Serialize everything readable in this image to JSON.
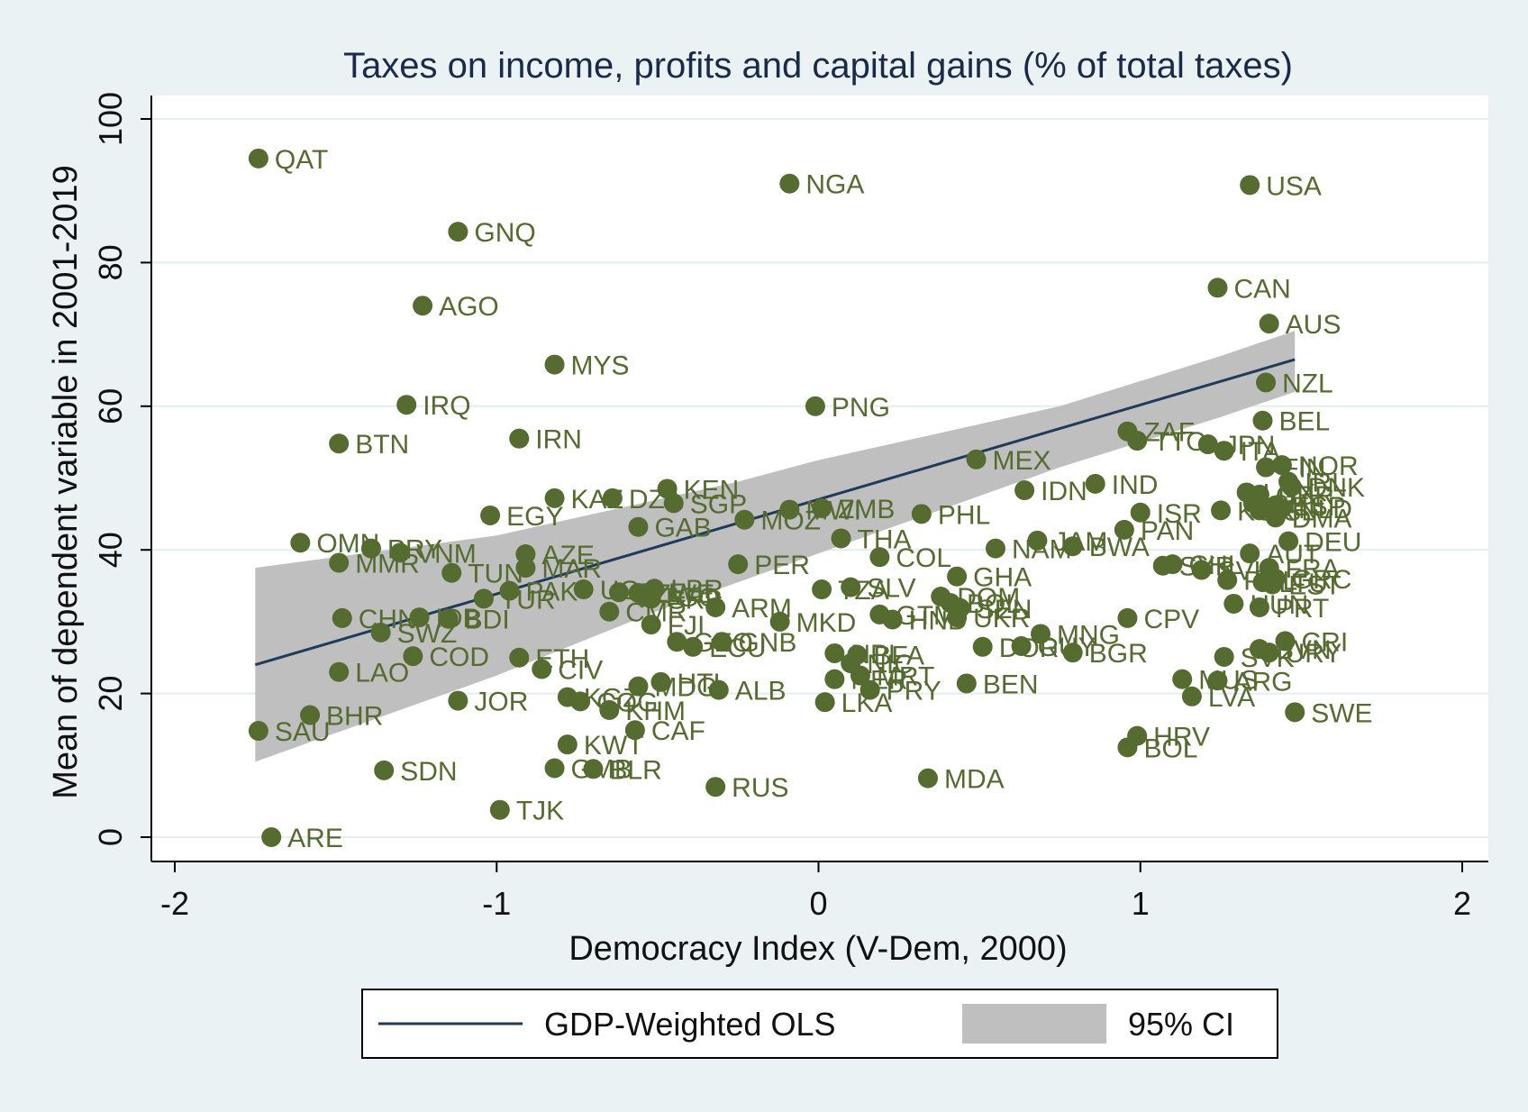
{
  "chart_data": {
    "type": "scatter",
    "title": "Taxes on income, profits and capital gains (% of total taxes)",
    "xlabel": "Democracy Index (V-Dem, 2000)",
    "ylabel": "Mean of dependent variable in 2001-2019",
    "xlim": [
      -2,
      2
    ],
    "ylim": [
      0,
      100
    ],
    "xticks": [
      "-2",
      "-1",
      "0",
      "1",
      "2"
    ],
    "yticks": [
      "0",
      "20",
      "40",
      "60",
      "80",
      "100"
    ],
    "grid": "horizontal",
    "legend_placement": "bottom",
    "legend": {
      "line_label": "GDP-Weighted OLS",
      "band_label": "95% CI"
    },
    "colors": {
      "point": "#556b2f",
      "line": "#1f3b5c",
      "band": "#bfbfbf",
      "plot_bg": "#ffffff",
      "outer_bg": "#eaf2f3",
      "grid": "#e4eef0"
    },
    "fit_line": {
      "x": [
        -1.75,
        1.48
      ],
      "y": [
        24.0,
        66.5
      ]
    },
    "ci_band": {
      "x": [
        -1.75,
        -1.5,
        -1.25,
        -1.0,
        -0.75,
        -0.5,
        -0.25,
        0.0,
        0.25,
        0.5,
        0.75,
        1.0,
        1.25,
        1.48
      ],
      "lower": [
        10.5,
        14.5,
        18.5,
        22.5,
        27.0,
        31.5,
        35.5,
        39.5,
        43.5,
        47.5,
        51.5,
        55.0,
        58.5,
        62.0
      ],
      "upper": [
        37.5,
        39.0,
        40.5,
        42.0,
        44.5,
        47.0,
        49.5,
        52.5,
        55.0,
        57.5,
        60.0,
        63.5,
        67.0,
        70.5
      ]
    },
    "points": [
      {
        "label": "QAT",
        "x": -1.74,
        "y": 94.5
      },
      {
        "label": "NGA",
        "x": -0.09,
        "y": 91.0
      },
      {
        "label": "USA",
        "x": 1.34,
        "y": 90.8
      },
      {
        "label": "GNQ",
        "x": -1.12,
        "y": 84.3
      },
      {
        "label": "CAN",
        "x": 1.24,
        "y": 76.5
      },
      {
        "label": "AGO",
        "x": -1.23,
        "y": 74.0
      },
      {
        "label": "AUS",
        "x": 1.4,
        "y": 71.5
      },
      {
        "label": "MYS",
        "x": -0.82,
        "y": 65.8
      },
      {
        "label": "NZL",
        "x": 1.39,
        "y": 63.3
      },
      {
        "label": "IRQ",
        "x": -1.28,
        "y": 60.2
      },
      {
        "label": "PNG",
        "x": -0.01,
        "y": 60.0
      },
      {
        "label": "BEL",
        "x": 1.38,
        "y": 58.0
      },
      {
        "label": "IRN",
        "x": -0.93,
        "y": 55.5
      },
      {
        "label": "BTN",
        "x": -1.49,
        "y": 54.8
      },
      {
        "label": "ZAF",
        "x": 0.96,
        "y": 56.5
      },
      {
        "label": "TTO",
        "x": 0.99,
        "y": 55.2
      },
      {
        "label": "JPN",
        "x": 1.21,
        "y": 54.7
      },
      {
        "label": "ITA",
        "x": 1.26,
        "y": 53.8
      },
      {
        "label": "MEX",
        "x": 0.49,
        "y": 52.6
      },
      {
        "label": "NOR",
        "x": 1.44,
        "y": 51.8
      },
      {
        "label": "FIN",
        "x": 1.39,
        "y": 51.5
      },
      {
        "label": "IRL",
        "x": 1.46,
        "y": 49.5
      },
      {
        "label": "IND",
        "x": 0.86,
        "y": 49.2
      },
      {
        "label": "DNK",
        "x": 1.47,
        "y": 48.8
      },
      {
        "label": "KEN",
        "x": -0.47,
        "y": 48.5
      },
      {
        "label": "IDN",
        "x": 0.64,
        "y": 48.3
      },
      {
        "label": "LUX",
        "x": 1.33,
        "y": 48.0
      },
      {
        "label": "GBR",
        "x": 1.37,
        "y": 47.7
      },
      {
        "label": "KAZ",
        "x": -0.82,
        "y": 47.2
      },
      {
        "label": "DZA",
        "x": -0.64,
        "y": 47.2
      },
      {
        "label": "CHE",
        "x": 1.35,
        "y": 46.5
      },
      {
        "label": "ESP",
        "x": 1.42,
        "y": 46.2
      },
      {
        "label": "SGP",
        "x": -0.45,
        "y": 46.5
      },
      {
        "label": "NLD",
        "x": 1.44,
        "y": 45.8
      },
      {
        "label": "ISL",
        "x": 1.37,
        "y": 45.5
      },
      {
        "label": "MOZ",
        "x": -0.23,
        "y": 44.2
      },
      {
        "label": "MWI",
        "x": -0.09,
        "y": 45.6
      },
      {
        "label": "ZMB",
        "x": 0.01,
        "y": 45.8
      },
      {
        "label": "ISR",
        "x": 1.0,
        "y": 45.2
      },
      {
        "label": "KOR",
        "x": 1.25,
        "y": 45.5
      },
      {
        "label": "DMA",
        "x": 1.42,
        "y": 44.5
      },
      {
        "label": "EGY",
        "x": -1.02,
        "y": 44.8
      },
      {
        "label": "PHL",
        "x": 0.32,
        "y": 45.0
      },
      {
        "label": "GAB",
        "x": -0.56,
        "y": 43.2
      },
      {
        "label": "PAN",
        "x": 0.95,
        "y": 42.8
      },
      {
        "label": "THA",
        "x": 0.07,
        "y": 41.6
      },
      {
        "label": "DEU",
        "x": 1.46,
        "y": 41.2
      },
      {
        "label": "OMN",
        "x": -1.61,
        "y": 41.0
      },
      {
        "label": "JAM",
        "x": 0.68,
        "y": 41.3
      },
      {
        "label": "BWA",
        "x": 0.79,
        "y": 40.5
      },
      {
        "label": "PRY",
        "x": -1.39,
        "y": 40.2
      },
      {
        "label": "NAM",
        "x": 0.55,
        "y": 40.2
      },
      {
        "label": "VNM",
        "x": -1.3,
        "y": 39.6
      },
      {
        "label": "AZE",
        "x": -0.91,
        "y": 39.4
      },
      {
        "label": "AUT",
        "x": 1.34,
        "y": 39.5
      },
      {
        "label": "COL",
        "x": 0.19,
        "y": 39.0
      },
      {
        "label": "MMR",
        "x": -1.49,
        "y": 38.2
      },
      {
        "label": "PER",
        "x": -0.25,
        "y": 38.0
      },
      {
        "label": "SYR",
        "x": 1.07,
        "y": 37.8
      },
      {
        "label": "CHL",
        "x": 1.1,
        "y": 38.0
      },
      {
        "label": "FRA",
        "x": 1.4,
        "y": 37.5
      },
      {
        "label": "MAR",
        "x": -0.91,
        "y": 37.5
      },
      {
        "label": "SVK",
        "x": 1.19,
        "y": 37.2
      },
      {
        "label": "TUN",
        "x": -1.14,
        "y": 36.8
      },
      {
        "label": "GHA",
        "x": 0.43,
        "y": 36.3
      },
      {
        "label": "GRC",
        "x": 1.42,
        "y": 36.0
      },
      {
        "label": "POL",
        "x": 1.27,
        "y": 35.8
      },
      {
        "label": "LTU",
        "x": 1.38,
        "y": 35.5
      },
      {
        "label": "EST",
        "x": 1.41,
        "y": 35.2
      },
      {
        "label": "SLV",
        "x": 0.1,
        "y": 34.8
      },
      {
        "label": "TZA",
        "x": 0.01,
        "y": 34.5
      },
      {
        "label": "UGA",
        "x": -0.73,
        "y": 34.5
      },
      {
        "label": "LBR",
        "x": -0.51,
        "y": 34.6
      },
      {
        "label": "PAK",
        "x": -0.96,
        "y": 34.3
      },
      {
        "label": "SLE",
        "x": -0.62,
        "y": 34.1
      },
      {
        "label": "ZWE",
        "x": -0.56,
        "y": 34.0
      },
      {
        "label": "TGO",
        "x": -0.54,
        "y": 33.5
      },
      {
        "label": "SRB",
        "x": -0.52,
        "y": 33.2
      },
      {
        "label": "DOM",
        "x": 0.38,
        "y": 33.5
      },
      {
        "label": "BOL",
        "x": 0.41,
        "y": 32.6
      },
      {
        "label": "SEN",
        "x": 0.44,
        "y": 31.9
      },
      {
        "label": "HUN",
        "x": 1.29,
        "y": 32.5
      },
      {
        "label": "PRT",
        "x": 1.37,
        "y": 32.0
      },
      {
        "label": "TUR",
        "x": -1.04,
        "y": 33.2
      },
      {
        "label": "ARM",
        "x": -0.32,
        "y": 32.0
      },
      {
        "label": "CHN",
        "x": -1.48,
        "y": 30.5
      },
      {
        "label": "IDB",
        "x": -1.24,
        "y": 30.6
      },
      {
        "label": "BDI",
        "x": -1.15,
        "y": 30.4
      },
      {
        "label": "CMR",
        "x": -0.65,
        "y": 31.4
      },
      {
        "label": "GTM",
        "x": 0.19,
        "y": 31.0
      },
      {
        "label": "HND",
        "x": 0.23,
        "y": 30.3
      },
      {
        "label": "UKR",
        "x": 0.43,
        "y": 30.6
      },
      {
        "label": "CPV",
        "x": 0.96,
        "y": 30.5
      },
      {
        "label": "MKD",
        "x": -0.12,
        "y": 30.0
      },
      {
        "label": "FJI",
        "x": -0.52,
        "y": 29.6
      },
      {
        "label": "SWZ",
        "x": -1.36,
        "y": 28.5
      },
      {
        "label": "MNG",
        "x": 0.69,
        "y": 28.3
      },
      {
        "label": "CRI",
        "x": 1.45,
        "y": 27.3
      },
      {
        "label": "GNB",
        "x": -0.3,
        "y": 27.2
      },
      {
        "label": "GEO",
        "x": -0.44,
        "y": 27.2
      },
      {
        "label": "ECU",
        "x": -0.39,
        "y": 26.5
      },
      {
        "label": "GUY",
        "x": 0.63,
        "y": 26.6
      },
      {
        "label": "DOR",
        "x": 0.51,
        "y": 26.5
      },
      {
        "label": "SVN",
        "x": 1.37,
        "y": 26.2
      },
      {
        "label": "URY",
        "x": 1.4,
        "y": 25.7
      },
      {
        "label": "BGR",
        "x": 0.79,
        "y": 25.7
      },
      {
        "label": "COD",
        "x": -1.26,
        "y": 25.2
      },
      {
        "label": "ETH",
        "x": -0.93,
        "y": 25.0
      },
      {
        "label": "BFA",
        "x": 0.12,
        "y": 25.4
      },
      {
        "label": "NPL",
        "x": 0.05,
        "y": 25.6
      },
      {
        "label": "SVK2",
        "x": 1.26,
        "y": 25.1
      },
      {
        "label": "NIC",
        "x": 0.1,
        "y": 24.2
      },
      {
        "label": "CIV",
        "x": -0.86,
        "y": 23.4
      },
      {
        "label": "LAO",
        "x": -1.49,
        "y": 23.0
      },
      {
        "label": "MRT",
        "x": 0.13,
        "y": 22.5
      },
      {
        "label": "BEN",
        "x": 0.46,
        "y": 21.4
      },
      {
        "label": "MUS",
        "x": 1.13,
        "y": 22.0
      },
      {
        "label": "ARG",
        "x": 1.24,
        "y": 21.8
      },
      {
        "label": "NER",
        "x": 0.05,
        "y": 22.0
      },
      {
        "label": "HTI",
        "x": -0.49,
        "y": 21.6
      },
      {
        "label": "MDG",
        "x": -0.56,
        "y": 21.0
      },
      {
        "label": "PRY2",
        "x": 0.16,
        "y": 20.5
      },
      {
        "label": "ALB",
        "x": -0.31,
        "y": 20.5
      },
      {
        "label": "LVA",
        "x": 1.16,
        "y": 19.6
      },
      {
        "label": "KGZ",
        "x": -0.78,
        "y": 19.5
      },
      {
        "label": "JOR",
        "x": -1.12,
        "y": 19.0
      },
      {
        "label": "COG",
        "x": -0.74,
        "y": 18.9
      },
      {
        "label": "LKA",
        "x": 0.02,
        "y": 18.8
      },
      {
        "label": "KHM",
        "x": -0.65,
        "y": 17.7
      },
      {
        "label": "SWE",
        "x": 1.48,
        "y": 17.4
      },
      {
        "label": "BHR",
        "x": -1.58,
        "y": 17.0
      },
      {
        "label": "CAF",
        "x": -0.57,
        "y": 14.9
      },
      {
        "label": "SAU",
        "x": -1.74,
        "y": 14.8
      },
      {
        "label": "HRV",
        "x": 0.99,
        "y": 14.1
      },
      {
        "label": "KWT",
        "x": -0.78,
        "y": 12.9
      },
      {
        "label": "BOL2",
        "x": 0.96,
        "y": 12.5
      },
      {
        "label": "GMB",
        "x": -0.82,
        "y": 9.6
      },
      {
        "label": "BLR",
        "x": -0.7,
        "y": 9.5
      },
      {
        "label": "SDN",
        "x": -1.35,
        "y": 9.3
      },
      {
        "label": "MDA",
        "x": 0.34,
        "y": 8.2
      },
      {
        "label": "RUS",
        "x": -0.32,
        "y": 7.0
      },
      {
        "label": "TJK",
        "x": -0.99,
        "y": 3.8
      },
      {
        "label": "ARE",
        "x": -1.7,
        "y": 0.0
      }
    ]
  }
}
